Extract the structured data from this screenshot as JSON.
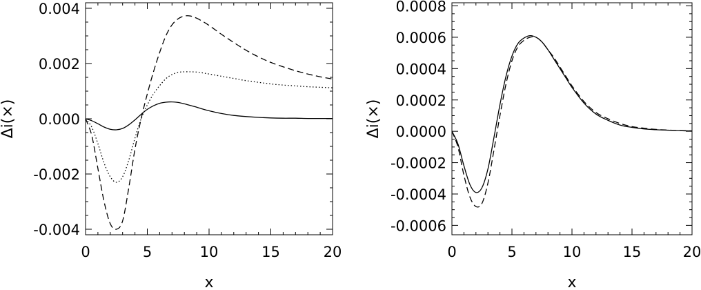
{
  "chart_data": [
    {
      "type": "line",
      "title": "",
      "xlabel": "x",
      "ylabel": "Δi(×)",
      "xlim": [
        0,
        20
      ],
      "ylim": [
        -0.0042,
        0.0042
      ],
      "xticks": [
        0,
        5,
        10,
        15,
        20
      ],
      "xtick_labels": [
        "0",
        "5",
        "10",
        "15",
        "20"
      ],
      "yticks": [
        -0.004,
        -0.002,
        0.0,
        0.002,
        0.004
      ],
      "ytick_labels": [
        "-0.004",
        "-0.002",
        "0.000",
        "0.002",
        "0.004"
      ],
      "grid": false,
      "legend": "none",
      "series": [
        {
          "style": "solid",
          "x": [
            0,
            0.5,
            1,
            1.5,
            2,
            2.5,
            3,
            3.5,
            4,
            4.5,
            5,
            5.5,
            6,
            6.5,
            7,
            7.5,
            8,
            8.5,
            9,
            9.5,
            10,
            11,
            12,
            13,
            14,
            15,
            16,
            17,
            18,
            19,
            20
          ],
          "y": [
            0,
            -7e-05,
            -0.00018,
            -0.0003,
            -0.00038,
            -0.0004,
            -0.00035,
            -0.00022,
            -4e-05,
            0.00016,
            0.00034,
            0.00047,
            0.00056,
            0.0006,
            0.00061,
            0.00059,
            0.00054,
            0.00048,
            0.00042,
            0.00035,
            0.00029,
            0.00019,
            0.00012,
            8e-05,
            5e-05,
            3e-05,
            2e-05,
            2e-05,
            1e-05,
            1e-05,
            1e-05
          ]
        },
        {
          "style": "dotted",
          "x": [
            0,
            0.5,
            1,
            1.5,
            2,
            2.5,
            3,
            3.5,
            4,
            4.5,
            5,
            5.5,
            6,
            6.5,
            7,
            7.5,
            8,
            8.5,
            9,
            9.5,
            10,
            11,
            12,
            13,
            14,
            15,
            16,
            17,
            18,
            19,
            20
          ],
          "y": [
            0,
            -0.0003,
            -0.0009,
            -0.0016,
            -0.0021,
            -0.0023,
            -0.0021,
            -0.0015,
            -0.0007,
            0.0,
            0.0005,
            0.0009,
            0.0012,
            0.00145,
            0.0016,
            0.00168,
            0.0017,
            0.0017,
            0.00169,
            0.00166,
            0.00162,
            0.00154,
            0.00146,
            0.00138,
            0.00132,
            0.00126,
            0.00122,
            0.00119,
            0.00116,
            0.00114,
            0.00112
          ]
        },
        {
          "style": "dashed",
          "x": [
            0,
            0.5,
            1,
            1.5,
            2,
            2.5,
            3,
            3.5,
            4,
            4.5,
            5,
            5.5,
            6,
            6.5,
            7,
            7.5,
            8,
            8.5,
            9,
            9.5,
            10,
            11,
            12,
            13,
            14,
            15,
            16,
            17,
            18,
            19,
            20
          ],
          "y": [
            0,
            -0.0006,
            -0.0018,
            -0.003,
            -0.0038,
            -0.004,
            -0.0037,
            -0.0025,
            -0.0011,
            0.0,
            0.0009,
            0.0017,
            0.0024,
            0.003,
            0.0034,
            0.00362,
            0.00372,
            0.00372,
            0.00364,
            0.00352,
            0.00338,
            0.00306,
            0.00276,
            0.00248,
            0.00224,
            0.00204,
            0.00188,
            0.00174,
            0.00162,
            0.00152,
            0.00144
          ]
        }
      ]
    },
    {
      "type": "line",
      "title": "",
      "xlabel": "x",
      "ylabel": "Δi(×)",
      "xlim": [
        0,
        20
      ],
      "ylim": [
        -0.00066,
        0.00082
      ],
      "xticks": [
        0,
        5,
        10,
        15,
        20
      ],
      "xtick_labels": [
        "0",
        "5",
        "10",
        "15",
        "20"
      ],
      "yticks": [
        -0.0006,
        -0.0004,
        -0.0002,
        0.0,
        0.0002,
        0.0004,
        0.0006,
        0.0008
      ],
      "ytick_labels": [
        "-0.0006",
        "-0.0004",
        "-0.0002",
        "0.0000",
        "0.0002",
        "0.0004",
        "0.0006",
        "0.0008"
      ],
      "grid": false,
      "legend": "none",
      "series": [
        {
          "style": "solid",
          "x": [
            0,
            0.5,
            1,
            1.5,
            2,
            2.5,
            3,
            3.5,
            4,
            4.5,
            5,
            5.5,
            6,
            6.5,
            7,
            7.5,
            8,
            8.5,
            9,
            9.5,
            10,
            11,
            12,
            13,
            14,
            15,
            16,
            17,
            18,
            19,
            20
          ],
          "y": [
            0,
            -8e-05,
            -0.00022,
            -0.00034,
            -0.00039,
            -0.00036,
            -0.00024,
            -4e-05,
            0.00017,
            0.00035,
            0.00048,
            0.00056,
            0.000595,
            0.00061,
            0.0006,
            0.00057,
            0.00052,
            0.00046,
            0.0004,
            0.00034,
            0.00028,
            0.00018,
            0.00011,
            7e-05,
            4e-05,
            2.5e-05,
            1.5e-05,
            1e-05,
            7e-06,
            4e-06,
            2e-06
          ]
        },
        {
          "style": "dashed",
          "x": [
            0,
            0.5,
            1,
            1.5,
            2,
            2.5,
            3,
            3.5,
            4,
            4.5,
            5,
            5.5,
            6,
            6.5,
            7,
            7.5,
            8,
            8.5,
            9,
            9.5,
            10,
            11,
            12,
            13,
            14,
            15,
            16,
            17,
            18,
            19,
            20
          ],
          "y": [
            0,
            -0.0001,
            -0.00028,
            -0.00042,
            -0.00048,
            -0.00046,
            -0.00033,
            -0.00012,
            0.0001,
            0.0003,
            0.00045,
            0.00054,
            0.00058,
            0.0006,
            0.0006,
            0.00057,
            0.00052,
            0.00047,
            0.00041,
            0.00035,
            0.00029,
            0.00019,
            0.00012,
            8e-05,
            5e-05,
            3e-05,
            2e-05,
            1.2e-05,
            8e-06,
            5e-06,
            3e-06
          ]
        }
      ]
    }
  ]
}
